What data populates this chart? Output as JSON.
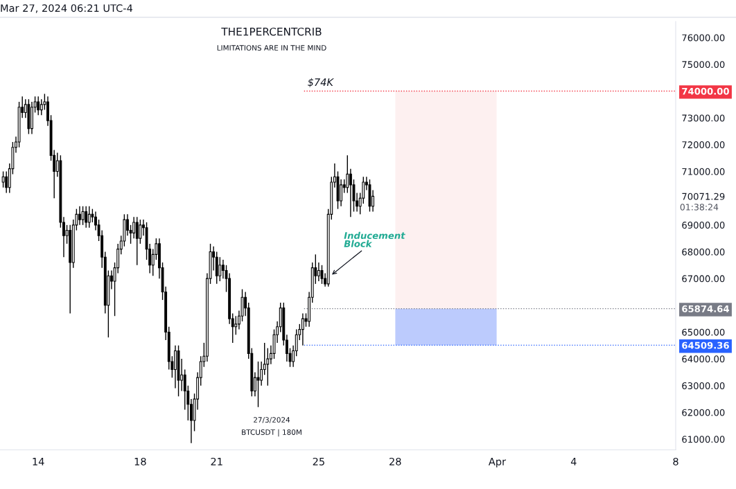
{
  "chart_data": {
    "type": "candlestick",
    "title": "THE1PERCENTCRIB",
    "subtitle": "LIMITATIONS ARE IN THE MIND",
    "color": "#000000",
    "x": [
      "2024-03-12T15:00",
      "2024-03-12T18:00",
      "2024-03-12T21:00",
      "2024-03-13T00:00",
      "2024-03-13T03:00",
      "2024-03-13T06:00",
      "2024-03-13T09:00",
      "2024-03-13T12:00",
      "2024-03-13T15:00",
      "2024-03-13T18:00",
      "2024-03-13T21:00",
      "2024-03-14T00:00",
      "2024-03-14T03:00",
      "2024-03-14T06:00",
      "2024-03-14T09:00",
      "2024-03-14T12:00",
      "2024-03-14T15:00",
      "2024-03-14T18:00",
      "2024-03-14T21:00",
      "2024-03-15T00:00",
      "2024-03-15T03:00",
      "2024-03-15T06:00",
      "2024-03-15T09:00",
      "2024-03-15T12:00",
      "2024-03-15T15:00",
      "2024-03-15T18:00",
      "2024-03-15T21:00",
      "2024-03-16T00:00",
      "2024-03-16T03:00",
      "2024-03-16T06:00",
      "2024-03-16T09:00",
      "2024-03-16T12:00",
      "2024-03-16T15:00",
      "2024-03-16T18:00",
      "2024-03-16T21:00",
      "2024-03-17T00:00",
      "2024-03-17T03:00",
      "2024-03-17T06:00",
      "2024-03-17T09:00",
      "2024-03-17T12:00",
      "2024-03-17T15:00",
      "2024-03-17T18:00",
      "2024-03-17T21:00",
      "2024-03-18T00:00",
      "2024-03-18T03:00",
      "2024-03-18T06:00",
      "2024-03-18T09:00",
      "2024-03-18T12:00",
      "2024-03-18T15:00",
      "2024-03-18T18:00",
      "2024-03-18T21:00",
      "2024-03-19T00:00",
      "2024-03-19T03:00",
      "2024-03-19T06:00",
      "2024-03-19T09:00",
      "2024-03-19T12:00",
      "2024-03-19T15:00",
      "2024-03-19T18:00",
      "2024-03-19T21:00",
      "2024-03-20T00:00",
      "2024-03-20T03:00",
      "2024-03-20T06:00",
      "2024-03-20T09:00",
      "2024-03-20T12:00",
      "2024-03-20T15:00",
      "2024-03-20T18:00",
      "2024-03-20T21:00",
      "2024-03-21T00:00",
      "2024-03-21T03:00",
      "2024-03-21T06:00",
      "2024-03-21T09:00",
      "2024-03-21T12:00",
      "2024-03-21T15:00",
      "2024-03-21T18:00",
      "2024-03-21T21:00",
      "2024-03-22T00:00",
      "2024-03-22T03:00",
      "2024-03-22T06:00",
      "2024-03-22T09:00",
      "2024-03-22T12:00",
      "2024-03-22T15:00",
      "2024-03-22T18:00",
      "2024-03-22T21:00",
      "2024-03-23T00:00",
      "2024-03-23T03:00",
      "2024-03-23T06:00",
      "2024-03-23T09:00",
      "2024-03-23T12:00",
      "2024-03-23T15:00",
      "2024-03-23T18:00",
      "2024-03-23T21:00",
      "2024-03-24T00:00",
      "2024-03-24T03:00",
      "2024-03-24T06:00",
      "2024-03-24T09:00",
      "2024-03-24T12:00",
      "2024-03-24T15:00",
      "2024-03-24T18:00",
      "2024-03-24T21:00",
      "2024-03-25T00:00",
      "2024-03-25T03:00",
      "2024-03-25T06:00",
      "2024-03-25T09:00",
      "2024-03-25T12:00",
      "2024-03-25T15:00",
      "2024-03-25T18:00",
      "2024-03-25T21:00",
      "2024-03-26T00:00",
      "2024-03-26T03:00",
      "2024-03-26T06:00",
      "2024-03-26T09:00",
      "2024-03-26T12:00",
      "2024-03-26T15:00",
      "2024-03-26T18:00",
      "2024-03-26T21:00",
      "2024-03-27T00:00",
      "2024-03-27T03:00"
    ],
    "ohlc": [
      [
        70600,
        71000,
        70400,
        70800
      ],
      [
        70800,
        71000,
        70200,
        70400
      ],
      [
        70400,
        71300,
        70200,
        71100
      ],
      [
        71100,
        72100,
        70900,
        71900
      ],
      [
        71900,
        72300,
        71700,
        72100
      ],
      [
        72100,
        73600,
        71900,
        73400
      ],
      [
        73400,
        73800,
        73000,
        73200
      ],
      [
        73200,
        73700,
        73000,
        73500
      ],
      [
        73500,
        73700,
        72400,
        72600
      ],
      [
        72600,
        73600,
        72400,
        73400
      ],
      [
        73400,
        73800,
        73200,
        73600
      ],
      [
        73600,
        73800,
        73100,
        73300
      ],
      [
        73300,
        73700,
        73100,
        73500
      ],
      [
        73500,
        73900,
        73300,
        73600
      ],
      [
        73600,
        73800,
        72700,
        72900
      ],
      [
        72900,
        73100,
        71400,
        71600
      ],
      [
        71600,
        71800,
        70000,
        71000
      ],
      [
        71000,
        71700,
        70800,
        71400
      ],
      [
        71400,
        71600,
        68900,
        69100
      ],
      [
        69100,
        69300,
        67800,
        68600
      ],
      [
        68600,
        69000,
        68300,
        68800
      ],
      [
        68800,
        69000,
        65700,
        67600
      ],
      [
        67600,
        69200,
        67400,
        69000
      ],
      [
        69000,
        69600,
        68800,
        69400
      ],
      [
        69400,
        69700,
        69000,
        69200
      ],
      [
        69200,
        69700,
        69000,
        69500
      ],
      [
        69500,
        69700,
        68900,
        69100
      ],
      [
        69100,
        69700,
        68900,
        69400
      ],
      [
        69400,
        69600,
        69100,
        69300
      ],
      [
        69300,
        69500,
        68800,
        69000
      ],
      [
        69000,
        69200,
        68400,
        68600
      ],
      [
        68600,
        68800,
        67400,
        67800
      ],
      [
        67800,
        68000,
        65700,
        66000
      ],
      [
        66000,
        67300,
        64800,
        67100
      ],
      [
        67100,
        67300,
        66600,
        66900
      ],
      [
        66900,
        67600,
        65600,
        67400
      ],
      [
        67400,
        68300,
        67200,
        68100
      ],
      [
        68100,
        68600,
        67900,
        68400
      ],
      [
        68400,
        69400,
        68200,
        69200
      ],
      [
        69200,
        69400,
        68600,
        68800
      ],
      [
        68800,
        69000,
        68300,
        68700
      ],
      [
        68700,
        69300,
        68500,
        69100
      ],
      [
        69100,
        69300,
        67500,
        68500
      ],
      [
        68500,
        69200,
        68300,
        69000
      ],
      [
        69000,
        69200,
        68600,
        68900
      ],
      [
        68900,
        69100,
        67700,
        68100
      ],
      [
        68100,
        68300,
        67200,
        67500
      ],
      [
        67500,
        68100,
        67100,
        67900
      ],
      [
        67900,
        68500,
        67700,
        68300
      ],
      [
        68300,
        68500,
        67000,
        67400
      ],
      [
        67400,
        67600,
        66200,
        66500
      ],
      [
        66500,
        66700,
        64700,
        65000
      ],
      [
        65000,
        65200,
        63600,
        63900
      ],
      [
        63900,
        64100,
        63300,
        63600
      ],
      [
        63600,
        64500,
        62900,
        64300
      ],
      [
        64300,
        64500,
        62600,
        63200
      ],
      [
        63200,
        64000,
        62800,
        63400
      ],
      [
        63400,
        63600,
        62100,
        62800
      ],
      [
        62800,
        63000,
        61700,
        62300
      ],
      [
        62300,
        62500,
        60850,
        61700
      ],
      [
        61700,
        62700,
        61300,
        62500
      ],
      [
        62500,
        63500,
        62100,
        63300
      ],
      [
        63300,
        64100,
        63000,
        63900
      ],
      [
        63900,
        64600,
        63700,
        64100
      ],
      [
        64100,
        67200,
        63900,
        67000
      ],
      [
        67000,
        68300,
        66800,
        68000
      ],
      [
        68000,
        68200,
        67300,
        67800
      ],
      [
        67800,
        68000,
        66800,
        67100
      ],
      [
        67100,
        67800,
        66900,
        67500
      ],
      [
        67500,
        67700,
        67000,
        67300
      ],
      [
        67300,
        67500,
        66500,
        67000
      ],
      [
        67000,
        67200,
        65300,
        65500
      ],
      [
        65500,
        65700,
        64600,
        65200
      ],
      [
        65200,
        65600,
        64900,
        65300
      ],
      [
        65300,
        65800,
        65100,
        65600
      ],
      [
        65600,
        66600,
        65400,
        66300
      ],
      [
        66300,
        66500,
        65600,
        65900
      ],
      [
        65900,
        66100,
        64000,
        64200
      ],
      [
        64200,
        64400,
        62600,
        62800
      ],
      [
        62800,
        63500,
        62600,
        63300
      ],
      [
        63300,
        63900,
        62200,
        63200
      ],
      [
        63200,
        63900,
        63000,
        63600
      ],
      [
        63600,
        64600,
        63400,
        63800
      ],
      [
        63800,
        64400,
        63000,
        64000
      ],
      [
        64000,
        64500,
        63800,
        64200
      ],
      [
        64200,
        65100,
        64000,
        64900
      ],
      [
        64900,
        65400,
        64600,
        65200
      ],
      [
        65200,
        66100,
        65000,
        65900
      ],
      [
        65900,
        66100,
        64500,
        64700
      ],
      [
        64700,
        64900,
        63900,
        64200
      ],
      [
        64200,
        64400,
        63700,
        63900
      ],
      [
        63900,
        64500,
        63700,
        64300
      ],
      [
        64300,
        65100,
        64100,
        64900
      ],
      [
        64900,
        65300,
        64700,
        65100
      ],
      [
        65100,
        65700,
        64500,
        65500
      ],
      [
        65500,
        65700,
        65200,
        65400
      ],
      [
        65400,
        66500,
        65200,
        66300
      ],
      [
        66300,
        67600,
        66100,
        67400
      ],
      [
        67400,
        67900,
        66800,
        67100
      ],
      [
        67100,
        67600,
        66900,
        67300
      ],
      [
        67300,
        67500,
        66800,
        67000
      ],
      [
        67000,
        67200,
        66700,
        66800
      ],
      [
        66800,
        69600,
        66700,
        69400
      ],
      [
        69400,
        70800,
        69200,
        70600
      ],
      [
        70600,
        71300,
        70400,
        70800
      ],
      [
        70800,
        71000,
        69600,
        69900
      ],
      [
        69900,
        70700,
        69700,
        70500
      ],
      [
        70500,
        70700,
        70200,
        70400
      ],
      [
        70400,
        71600,
        70200,
        70900
      ],
      [
        70900,
        71100,
        69300,
        70500
      ],
      [
        70500,
        70700,
        69500,
        69900
      ],
      [
        69900,
        70200,
        69500,
        69700
      ],
      [
        69700,
        70200,
        69400,
        70000
      ],
      [
        70000,
        70800,
        69800,
        70600
      ],
      [
        70600,
        70800,
        70300,
        70500
      ],
      [
        70500,
        70700,
        69500,
        69700
      ],
      [
        69700,
        70300,
        69500,
        70071.29
      ]
    ],
    "xlim": [
      "2024-03-12T12:00",
      "2024-04-08T00:00"
    ],
    "xticks": [
      {
        "value": "2024-03-14",
        "label": "14"
      },
      {
        "value": "2024-03-18",
        "label": "18"
      },
      {
        "value": "2024-03-21",
        "label": "21"
      },
      {
        "value": "2024-03-25",
        "label": "25"
      },
      {
        "value": "2024-03-28",
        "label": "28"
      },
      {
        "value": "2024-04-01",
        "label": "Apr"
      },
      {
        "value": "2024-04-04",
        "label": "4"
      },
      {
        "value": "2024-04-08",
        "label": "8"
      }
    ],
    "ylim": [
      60600,
      76600
    ],
    "yticks": [
      {
        "value": 61000,
        "label": "61000.00"
      },
      {
        "value": 62000,
        "label": "62000.00"
      },
      {
        "value": 63000,
        "label": "63000.00"
      },
      {
        "value": 64000,
        "label": "64000.00"
      },
      {
        "value": 65000,
        "label": "65000.00"
      },
      {
        "value": 65874.64,
        "label": "65874.64"
      },
      {
        "value": 64509.36,
        "label": "64509.36"
      },
      {
        "value": 67000,
        "label": "67000.00"
      },
      {
        "value": 68000,
        "label": "68000.00"
      },
      {
        "value": 69000,
        "label": "69000.00"
      },
      {
        "value": 70071.29,
        "label": "70071.29"
      },
      {
        "value": 71000,
        "label": "71000.00"
      },
      {
        "value": 72000,
        "label": "72000.00"
      },
      {
        "value": 73000,
        "label": "73000.00"
      },
      {
        "value": 74000,
        "label": "74000.00"
      },
      {
        "value": 75000,
        "label": "75000.00"
      },
      {
        "value": 76000,
        "label": "76000.00"
      }
    ],
    "grid": false,
    "ref_lines": [
      {
        "axis": "y",
        "value": 74000,
        "label": "$74K",
        "color": "#f23645",
        "line_style": "dotted"
      },
      {
        "axis": "y",
        "value": 65874.64,
        "color": "#787b86",
        "line_style": "dotted"
      },
      {
        "axis": "y",
        "value": 64509.36,
        "color": "#2962ff",
        "line_style": "dotted"
      }
    ],
    "bands": [
      {
        "axis": "y",
        "from": 65874.64,
        "to": 74000,
        "color": "#fdf0f0"
      },
      {
        "axis": "y",
        "from": 64509.36,
        "to": 65874.64,
        "color": "#bccbfd"
      }
    ],
    "annotations": [
      "Mar 27, 2024 06:21 UTC-4",
      "27/3/2024",
      "BTCUSDT | 180M",
      "01:38:24",
      {
        "text": "Inducement\nBlock",
        "x": "2024-03-25T11:00",
        "y": 67100
      }
    ]
  }
}
